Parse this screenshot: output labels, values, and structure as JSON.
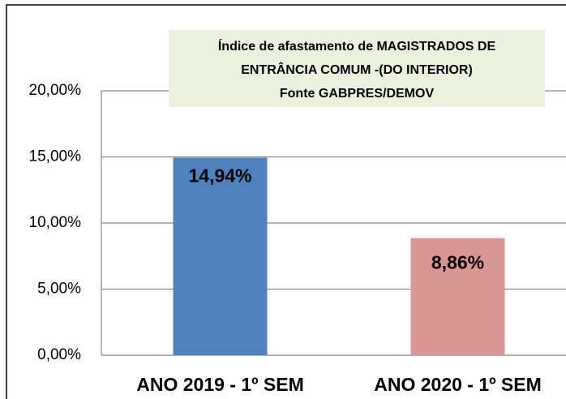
{
  "chart_data": {
    "type": "bar",
    "title": [
      "Índice  de afastamento de MAGISTRADOS DE",
      "ENTRÂNCIA COMUM  -(DO INTERIOR)",
      "Fonte GABPRES/DEMOV"
    ],
    "categories": [
      "ANO 2019 - 1º  SEM",
      "ANO 2020 - 1º SEM"
    ],
    "values": [
      14.94,
      8.86
    ],
    "value_labels": [
      "14,94%",
      "8,86%"
    ],
    "colors": [
      "#4f81bd",
      "#d99694"
    ],
    "ylim": [
      0,
      20
    ],
    "yticks": [
      {
        "value": 0,
        "label": "0,00%"
      },
      {
        "value": 5,
        "label": "5,00%"
      },
      {
        "value": 10,
        "label": "10,00%"
      },
      {
        "value": 15,
        "label": "15,00%"
      },
      {
        "value": 20,
        "label": "20,00%"
      }
    ],
    "grid": true
  }
}
